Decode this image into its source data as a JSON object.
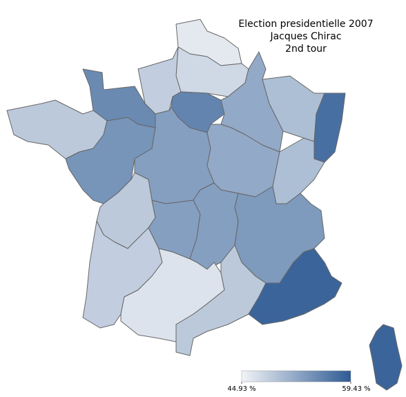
{
  "title_lines": [
    "Election presidentielle 2007",
    "Jacques Chirac",
    "2nd tour"
  ],
  "color_scale": [
    "#f2f4f7",
    "#2e5b94"
  ],
  "colorbar": {
    "min": {
      "value": 44.93,
      "label": "44.93 %"
    },
    "max": {
      "value": 59.43,
      "label": "59.43 %"
    }
  },
  "region_values": [
    46,
    47.5,
    48.5,
    55,
    55.5,
    52,
    50,
    57.5,
    49,
    54,
    53,
    52,
    50,
    49,
    53,
    53,
    53.5,
    48.5,
    46.5,
    49,
    58.5,
    58.5
  ]
}
